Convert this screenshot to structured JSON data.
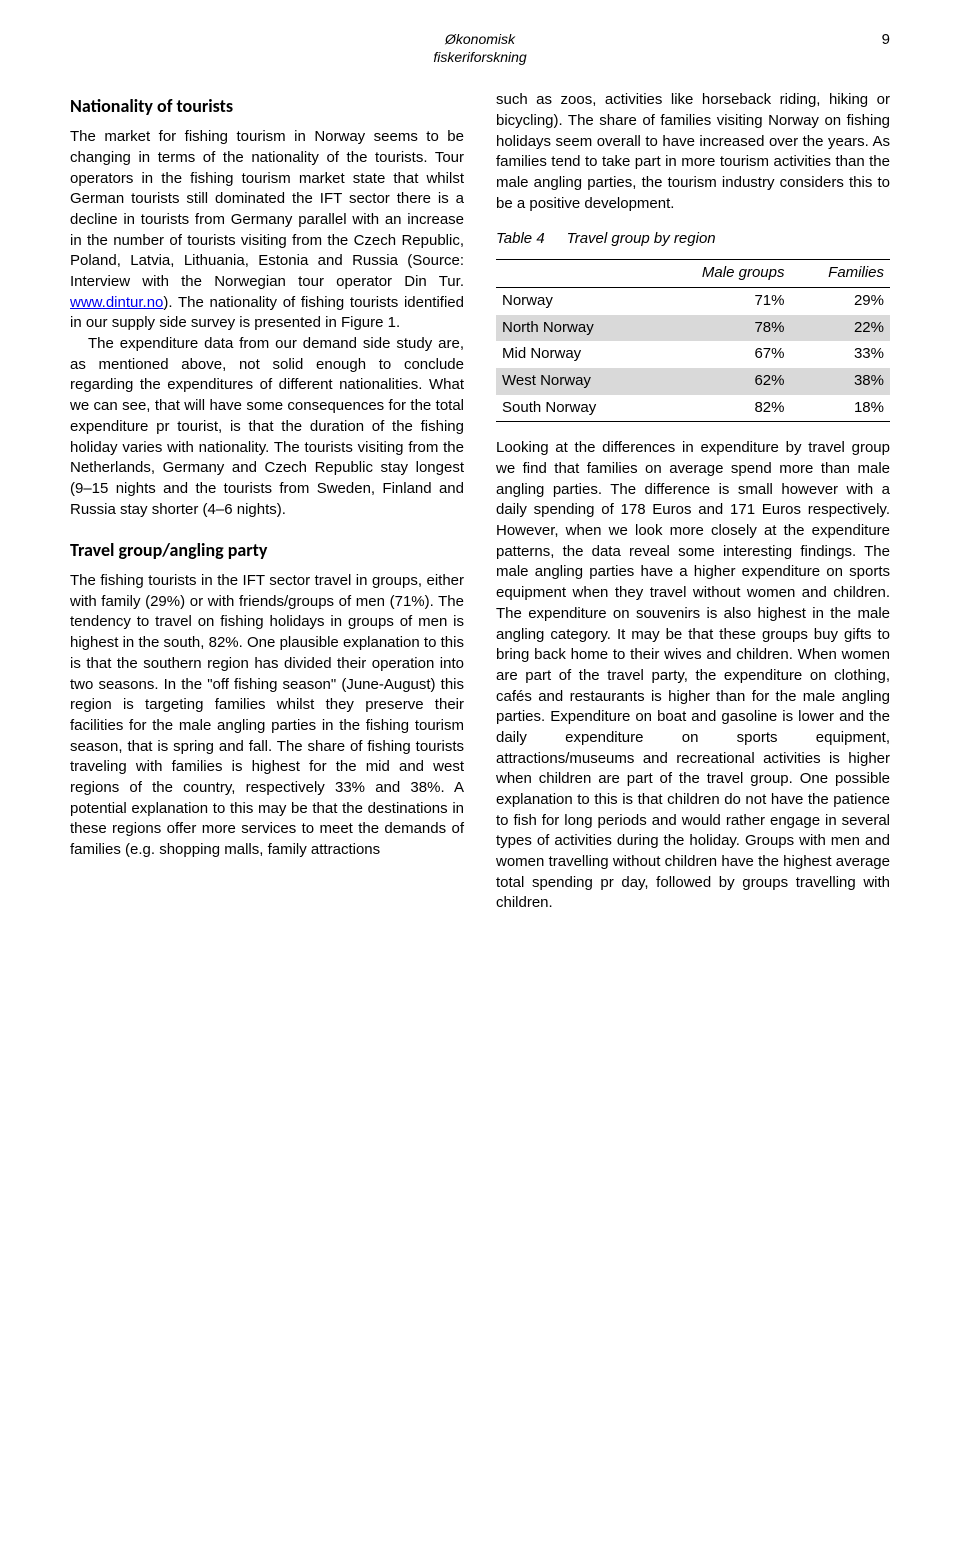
{
  "header": {
    "line1": "Økonomisk",
    "line2": "fiskeriforskning",
    "pageNumber": "9"
  },
  "left": {
    "h1": "Nationality of tourists",
    "p1a": "The market for fishing tourism in Norway seems to be changing in terms of the nationality of the tourists. Tour operators in the fishing tourism market state that whilst German tourists still dominated the IFT sector there is a decline in tourists from Germany parallel with an increase in the number of tourists visiting from the Czech Republic, Poland, Latvia, Lithuania, Estonia and Russia (Source: Interview with the Norwegian tour operator Din Tur. ",
    "link": "www.dintur.no",
    "p1b": "). The nationality of fishing tourists identified in our supply side survey is presented in Figure 1.",
    "p2": "The expenditure data from our demand side study are, as mentioned above, not solid enough to conclude regarding the expenditures of different nationalities. What we can see, that will have some consequences for the total expenditure pr tourist, is that the duration of the fishing holiday varies with nationality. The tourists visiting from the Netherlands, Germany and Czech Republic stay longest (9–15 nights and the tourists from Sweden, Finland and Russia stay shorter (4–6 nights).",
    "h2": "Travel group/angling party",
    "p3": "The fishing tourists in the IFT sector travel in groups, either with family (29%) or with friends/groups of men (71%). The tendency to travel on fishing holidays in groups of men is highest in the south, 82%. One plausible explanation to this is that the southern region has divided their operation into two seasons. In the \"off fishing season\" (June-August) this region is targeting families whilst they preserve their facilities for the male angling parties in the fishing tourism season, that is spring and fall. The share of fishing tourists traveling with families is highest for the mid and west regions of the country, respectively 33% and 38%. A potential explanation to this may be that the destinations in these regions offer more services to meet the demands of families (e.g. shopping malls, family attractions"
  },
  "right": {
    "p1": "such as zoos, activities like horseback riding, hiking or bicycling). The share of families visiting Norway on fishing holidays seem overall to have increased over the years. As families tend to take part in more tourism activities than the male angling parties, the tourism industry considers this to be a positive development.",
    "table": {
      "label": "Table 4",
      "title": "Travel group by region",
      "colors": {
        "shade": "#d9d9d9",
        "border": "#000000"
      },
      "headers": [
        "",
        "Male groups",
        "Families"
      ],
      "rows": [
        {
          "region": "Norway",
          "male": "71%",
          "fam": "29%",
          "shade": false
        },
        {
          "region": "North Norway",
          "male": "78%",
          "fam": "22%",
          "shade": true
        },
        {
          "region": "Mid Norway",
          "male": "67%",
          "fam": "33%",
          "shade": false
        },
        {
          "region": "West Norway",
          "male": "62%",
          "fam": "38%",
          "shade": true
        },
        {
          "region": "South Norway",
          "male": "82%",
          "fam": "18%",
          "shade": false
        }
      ]
    },
    "p2": "Looking at the differences in expenditure by travel group we find that families on average spend more than male angling parties. The difference is small however with a daily spending of 178 Euros and 171 Euros respectively. However, when we look more closely at the expenditure patterns, the data reveal some interesting findings. The male angling parties have a higher expenditure on sports equipment when they travel without women and children. The expenditure on souvenirs is also highest in the male angling category. It may be that these groups buy gifts to bring back home to their wives and children. When women are part of the travel party, the expenditure on clothing, cafés and restaurants is higher than for the male angling parties. Expenditure on boat and gasoline is lower and the daily expenditure on sports equipment, attractions/museums and recreational activities is higher when children are part of the travel group. One possible explanation to this is that children do not have the patience to fish for long periods and would rather engage in several types of activities during the holiday. Groups with men and women travelling without children have the highest average total spending pr day, followed by groups travelling with children."
  }
}
